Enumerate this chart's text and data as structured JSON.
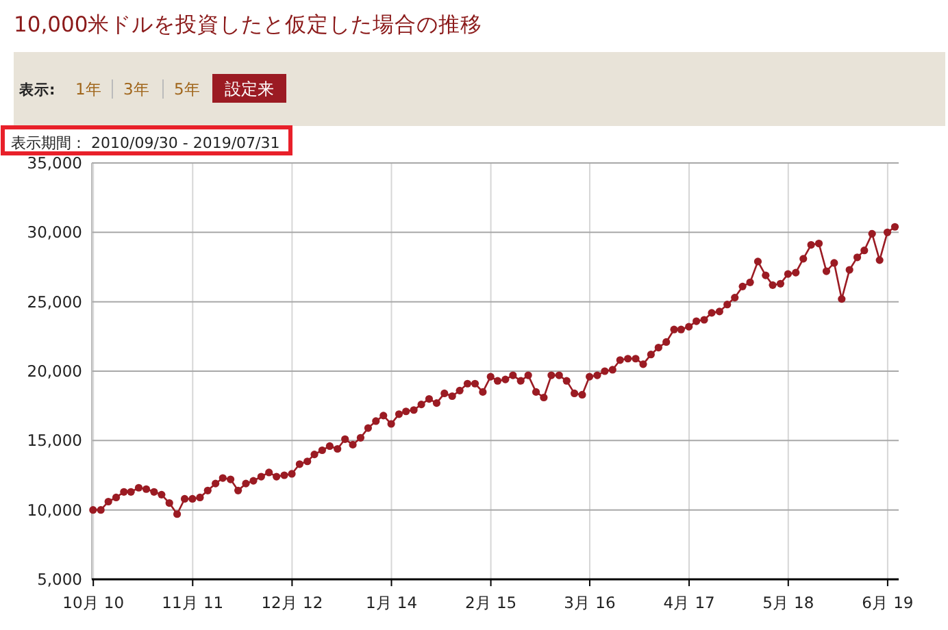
{
  "chart_data": {
    "type": "line",
    "title": "10,000米ドルを投資したと仮定した場合の推移",
    "annotations": [
      "表示:",
      "1年",
      "3年",
      "5年",
      "設定来",
      "表示期間： 2010/09/30 - 2019/07/31"
    ],
    "x": [
      "2010-09-30",
      "2010-10-31",
      "2010-11-30",
      "2010-12-31",
      "2011-01-31",
      "2011-02-28",
      "2011-03-31",
      "2011-04-30",
      "2011-05-31",
      "2011-06-30",
      "2011-07-31",
      "2011-08-31",
      "2011-09-30",
      "2011-10-31",
      "2011-11-30",
      "2011-12-31",
      "2012-01-31",
      "2012-02-29",
      "2012-03-31",
      "2012-04-30",
      "2012-05-31",
      "2012-06-30",
      "2012-07-31",
      "2012-08-31",
      "2012-09-30",
      "2012-10-31",
      "2012-11-30",
      "2012-12-31",
      "2013-01-31",
      "2013-02-28",
      "2013-03-31",
      "2013-04-30",
      "2013-05-31",
      "2013-06-30",
      "2013-07-31",
      "2013-08-31",
      "2013-09-30",
      "2013-10-31",
      "2013-11-30",
      "2013-12-31",
      "2014-01-31",
      "2014-02-28",
      "2014-03-31",
      "2014-04-30",
      "2014-05-31",
      "2014-06-30",
      "2014-07-31",
      "2014-08-31",
      "2014-09-30",
      "2014-10-31",
      "2014-11-30",
      "2014-12-31",
      "2015-01-31",
      "2015-02-28",
      "2015-03-31",
      "2015-04-30",
      "2015-05-31",
      "2015-06-30",
      "2015-07-31",
      "2015-08-31",
      "2015-09-30",
      "2015-10-31",
      "2015-11-30",
      "2015-12-31",
      "2016-01-31",
      "2016-02-29",
      "2016-03-31",
      "2016-04-30",
      "2016-05-31",
      "2016-06-30",
      "2016-07-31",
      "2016-08-31",
      "2016-09-30",
      "2016-10-31",
      "2016-11-30",
      "2016-12-31",
      "2017-01-31",
      "2017-02-28",
      "2017-03-31",
      "2017-04-30",
      "2017-05-31",
      "2017-06-30",
      "2017-07-31",
      "2017-08-31",
      "2017-09-30",
      "2017-10-31",
      "2017-11-30",
      "2017-12-31",
      "2018-01-31",
      "2018-02-28",
      "2018-03-31",
      "2018-04-30",
      "2018-05-31",
      "2018-06-30",
      "2018-07-31",
      "2018-08-31",
      "2018-09-30",
      "2018-10-31",
      "2018-11-30",
      "2018-12-31",
      "2019-01-31",
      "2019-02-28",
      "2019-03-31",
      "2019-04-30",
      "2019-05-31",
      "2019-06-30"
    ],
    "series": [
      {
        "color": "#9b1b23",
        "values": [
          10000,
          10000,
          10600,
          10900,
          11300,
          11300,
          11600,
          11500,
          11300,
          11100,
          10500,
          9700,
          10800,
          10800,
          10900,
          11400,
          11900,
          12300,
          12200,
          11400,
          11900,
          12100,
          12400,
          12700,
          12400,
          12500,
          12600,
          13300,
          13500,
          14000,
          14300,
          14600,
          14400,
          15100,
          14700,
          15200,
          15900,
          16400,
          16800,
          16200,
          16900,
          17100,
          17200,
          17600,
          18000,
          17700,
          18400,
          18200,
          18600,
          19100,
          19100,
          18500,
          19600,
          19300,
          19400,
          19700,
          19300,
          19700,
          18500,
          18100,
          19700,
          19700,
          19300,
          18400,
          18300,
          19600,
          19700,
          20000,
          20100,
          20800,
          20900,
          20900,
          20500,
          21200,
          21700,
          22100,
          23000,
          23000,
          23200,
          23600,
          23700,
          24200,
          24300,
          24800,
          25300,
          26100,
          26400,
          27900,
          26900,
          26200,
          26300,
          27000,
          27100,
          28100,
          29100,
          29200,
          27200,
          27800,
          25200,
          27300,
          28200,
          28700,
          29900,
          28000,
          30000,
          30400
        ]
      }
    ],
    "xlim": [
      "2010-09-25",
      "2019-07-15"
    ],
    "xticks": [
      {
        "value": "2010-10-01",
        "label": "10月 10"
      },
      {
        "value": "2011-11-01",
        "label": "11月 11"
      },
      {
        "value": "2012-12-01",
        "label": "12月 12"
      },
      {
        "value": "2014-01-01",
        "label": "1月 14"
      },
      {
        "value": "2015-02-01",
        "label": "2月 15"
      },
      {
        "value": "2016-03-01",
        "label": "3月 16"
      },
      {
        "value": "2017-04-01",
        "label": "4月 17"
      },
      {
        "value": "2018-05-01",
        "label": "5月 18"
      },
      {
        "value": "2019-06-01",
        "label": "6月 19"
      }
    ],
    "ylim": [
      5000,
      35000
    ],
    "yticks": [
      {
        "value": 5000,
        "label": "5,000"
      },
      {
        "value": 10000,
        "label": "10,000"
      },
      {
        "value": 15000,
        "label": "15,000"
      },
      {
        "value": 20000,
        "label": "20,000"
      },
      {
        "value": 25000,
        "label": "25,000"
      },
      {
        "value": 30000,
        "label": "30,000"
      },
      {
        "value": 35000,
        "label": "35,000"
      }
    ],
    "grid": true,
    "marker": "circle",
    "line_style": "solid"
  }
}
